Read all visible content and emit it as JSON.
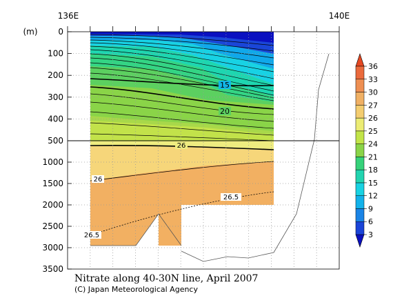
{
  "chart_data": {
    "type": "contour",
    "title": "Nitrate along 40-30N line, April 2007",
    "credit": "(C) Japan Meteorological Agency",
    "ylabel": "(m)",
    "x_ticks": [
      "136E",
      "140E"
    ],
    "y_ticks_upper": [
      0,
      100,
      200,
      300,
      400,
      500
    ],
    "y_ticks_lower": [
      1000,
      1500,
      2000,
      2500,
      3000,
      3500
    ],
    "colorbar": {
      "levels": [
        3,
        6,
        9,
        12,
        15,
        18,
        21,
        24,
        25,
        26,
        27,
        30,
        33,
        36
      ],
      "colors": [
        "#0a10c0",
        "#1a44d8",
        "#1a84e6",
        "#12b2ea",
        "#18d2e2",
        "#22d4b0",
        "#36d27a",
        "#8ad448",
        "#c2e448",
        "#ecec74",
        "#f4cd70",
        "#f0b064",
        "#ee8f52",
        "#ea6a3c",
        "#e54822"
      ]
    },
    "contour_labels": [
      "15",
      "20",
      "26",
      "26",
      "26.5",
      "26.5"
    ]
  }
}
